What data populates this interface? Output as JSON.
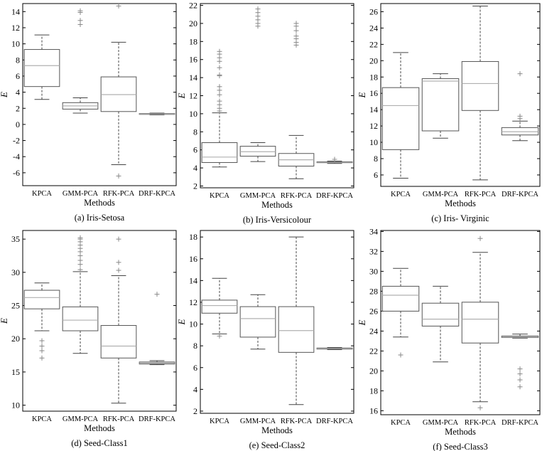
{
  "chart_data": [
    {
      "type": "box",
      "caption": "(a) Iris-Setosa",
      "xlabel": "Methods",
      "ylabel": "E",
      "ylim": [
        -7.6,
        15.0
      ],
      "yticks": [
        -6,
        -4,
        -2,
        0,
        2,
        4,
        6,
        8,
        10,
        12,
        14
      ],
      "categories": [
        "KPCA",
        "GMM-PCA",
        "RFK-PCA",
        "DRF-KPCA"
      ],
      "boxes": [
        {
          "min": 3.1,
          "q1": 4.7,
          "median": 7.3,
          "q3": 9.3,
          "max": 11.1,
          "outliers": []
        },
        {
          "min": 1.4,
          "q1": 1.9,
          "median": 2.3,
          "q3": 2.7,
          "max": 3.3,
          "outliers": [
            12.4,
            12.9,
            13.9,
            14.1
          ]
        },
        {
          "min": -5.0,
          "q1": 1.6,
          "median": 3.7,
          "q3": 5.9,
          "max": 10.2,
          "outliers": [
            -6.4,
            14.7
          ]
        },
        {
          "min": 1.2,
          "q1": 1.25,
          "median": 1.3,
          "q3": 1.35,
          "max": 1.4,
          "outliers": []
        }
      ]
    },
    {
      "type": "box",
      "caption": "(b) Iris-Versicolour",
      "xlabel": "Methods",
      "ylabel": "E",
      "ylim": [
        1.8,
        22.2
      ],
      "yticks": [
        2,
        4,
        6,
        8,
        10,
        12,
        14,
        16,
        18,
        20,
        22
      ],
      "categories": [
        "KPCA",
        "GMM-PCA",
        "RFK-PCA",
        "DRF-KPCA"
      ],
      "boxes": [
        {
          "min": 4.1,
          "q1": 4.6,
          "median": 5.2,
          "q3": 6.8,
          "max": 10.1,
          "outliers": [
            10.3,
            10.6,
            11.0,
            11.4,
            12.1,
            12.6,
            13.0,
            14.2,
            14.3,
            15.1,
            15.8,
            16.2,
            16.6,
            16.9
          ]
        },
        {
          "min": 4.7,
          "q1": 5.3,
          "median": 5.8,
          "q3": 6.4,
          "max": 6.8,
          "outliers": [
            19.7,
            20.0,
            20.4,
            20.8,
            21.2,
            21.6
          ]
        },
        {
          "min": 2.8,
          "q1": 4.2,
          "median": 4.9,
          "q3": 5.6,
          "max": 7.6,
          "outliers": [
            17.6,
            17.9,
            18.3,
            18.6,
            19.2,
            19.7,
            20.0
          ]
        },
        {
          "min": 4.5,
          "q1": 4.58,
          "median": 4.62,
          "q3": 4.68,
          "max": 4.75,
          "outliers": [
            4.95
          ]
        }
      ]
    },
    {
      "type": "box",
      "caption": "(c) Iris- Virginic",
      "xlabel": "Methods",
      "ylabel": "E",
      "ylim": [
        4.6,
        27.0
      ],
      "yticks": [
        6,
        8,
        10,
        12,
        14,
        16,
        18,
        20,
        22,
        24,
        26
      ],
      "categories": [
        "KPCA",
        "GMM-PCA",
        "RFK-PCA",
        "DRF-KPCA"
      ],
      "boxes": [
        {
          "min": 5.6,
          "q1": 9.1,
          "median": 14.5,
          "q3": 16.7,
          "max": 21.0,
          "outliers": []
        },
        {
          "min": 10.5,
          "q1": 11.4,
          "median": 17.5,
          "q3": 17.8,
          "max": 18.4,
          "outliers": []
        },
        {
          "min": 5.4,
          "q1": 13.9,
          "median": 17.2,
          "q3": 19.9,
          "max": 26.7,
          "outliers": []
        },
        {
          "min": 10.2,
          "q1": 10.9,
          "median": 11.3,
          "q3": 11.8,
          "max": 12.6,
          "outliers": [
            12.9,
            13.2,
            18.4
          ]
        }
      ]
    },
    {
      "type": "box",
      "caption": "(d) Seed-Class1",
      "xlabel": "Methods",
      "ylabel": "E",
      "ylim": [
        9.1,
        36.3
      ],
      "yticks": [
        10,
        15,
        20,
        25,
        30,
        35
      ],
      "categories": [
        "KPCA",
        "GMM-PCA",
        "RFK-PCA",
        "DRF-KPCA"
      ],
      "boxes": [
        {
          "min": 21.2,
          "q1": 24.5,
          "median": 26.2,
          "q3": 27.3,
          "max": 28.4,
          "outliers": [
            17.1,
            18.2,
            18.9,
            19.7
          ]
        },
        {
          "min": 17.8,
          "q1": 21.2,
          "median": 22.8,
          "q3": 24.8,
          "max": 30.1,
          "outliers": [
            30.4,
            31.2,
            31.8,
            32.5,
            33.1,
            33.6,
            34.1,
            34.6,
            35.0,
            35.2
          ]
        },
        {
          "min": 10.3,
          "q1": 17.1,
          "median": 18.9,
          "q3": 22.0,
          "max": 29.5,
          "outliers": [
            30.3,
            31.5,
            35.0
          ]
        },
        {
          "min": 16.1,
          "q1": 16.2,
          "median": 16.35,
          "q3": 16.5,
          "max": 16.7,
          "outliers": [
            26.7
          ]
        }
      ]
    },
    {
      "type": "box",
      "caption": "(e) Seed-Class2",
      "xlabel": "Methods",
      "ylabel": "E",
      "ylim": [
        1.8,
        18.6
      ],
      "yticks": [
        2,
        4,
        6,
        8,
        10,
        12,
        14,
        16,
        18
      ],
      "categories": [
        "KPCA",
        "GMM-PCA",
        "RFK-PCA",
        "DRF-KPCA"
      ],
      "boxes": [
        {
          "min": 9.1,
          "q1": 11.0,
          "median": 11.7,
          "q3": 12.2,
          "max": 14.2,
          "outliers": [
            8.9
          ]
        },
        {
          "min": 7.7,
          "q1": 8.8,
          "median": 10.5,
          "q3": 11.6,
          "max": 12.7,
          "outliers": []
        },
        {
          "min": 2.6,
          "q1": 7.4,
          "median": 9.4,
          "q3": 11.6,
          "max": 18.0,
          "outliers": []
        },
        {
          "min": 7.65,
          "q1": 7.7,
          "median": 7.75,
          "q3": 7.8,
          "max": 7.85,
          "outliers": []
        }
      ]
    },
    {
      "type": "box",
      "caption": "(f) Seed-Class3",
      "xlabel": "Methods",
      "ylabel": "E",
      "ylim": [
        15.6,
        34.1
      ],
      "yticks": [
        16,
        18,
        20,
        22,
        24,
        26,
        28,
        30,
        32,
        34
      ],
      "categories": [
        "KPCA",
        "GMM-PCA",
        "RFK-PCA",
        "DRF-KPCA"
      ],
      "boxes": [
        {
          "min": 23.4,
          "q1": 26.0,
          "median": 27.6,
          "q3": 28.5,
          "max": 30.3,
          "outliers": [
            21.6
          ]
        },
        {
          "min": 20.9,
          "q1": 24.5,
          "median": 25.2,
          "q3": 26.8,
          "max": 28.5,
          "outliers": []
        },
        {
          "min": 16.9,
          "q1": 22.8,
          "median": 25.2,
          "q3": 26.9,
          "max": 31.9,
          "outliers": [
            16.3,
            33.3
          ]
        },
        {
          "min": 23.3,
          "q1": 23.35,
          "median": 23.4,
          "q3": 23.5,
          "max": 23.7,
          "outliers": [
            18.4,
            19.1,
            19.7,
            20.2
          ]
        }
      ]
    }
  ],
  "colors": {
    "box": "#555555",
    "median": "#b0b0b0",
    "whisker": "#444444",
    "outlier": "#888888",
    "axis": "#000000"
  }
}
